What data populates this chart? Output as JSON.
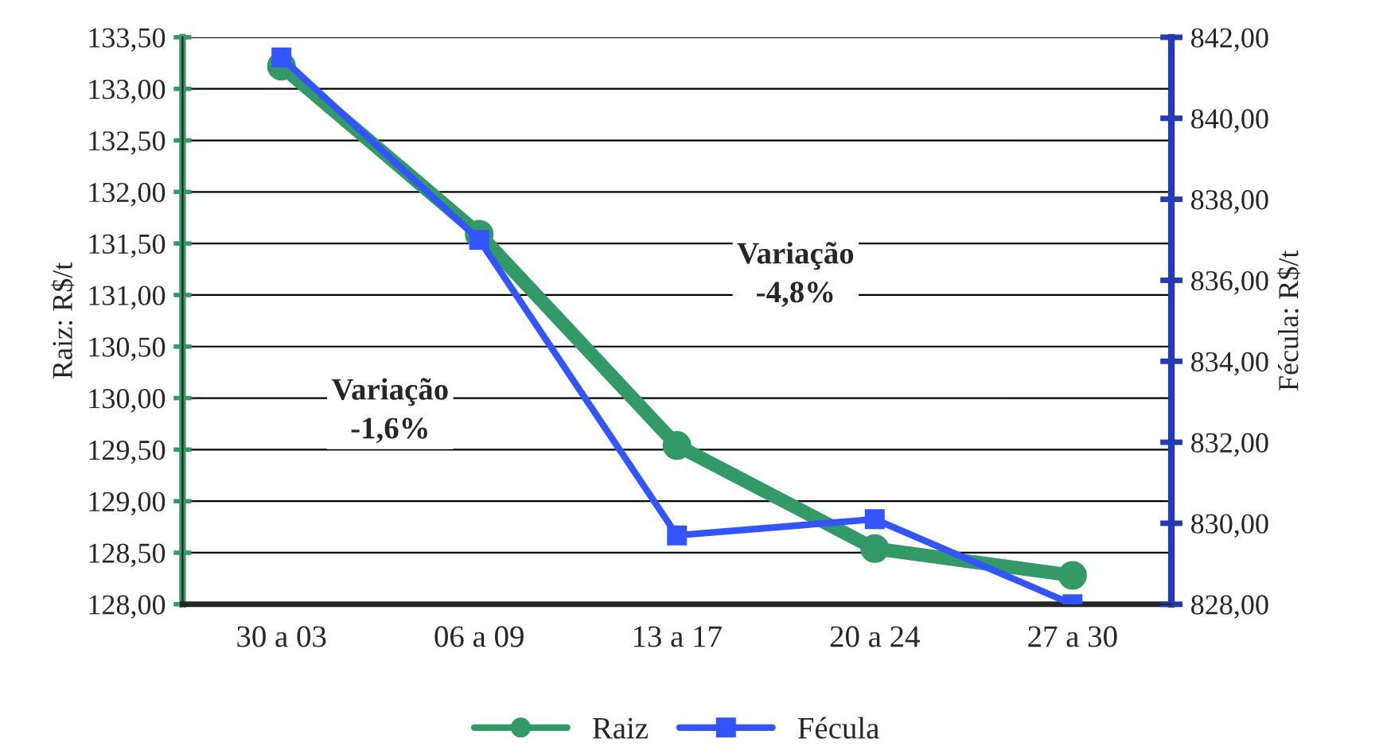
{
  "chart_data": {
    "type": "line",
    "ylabel": "Raiz: R$/t",
    "y2label": "Fécula: R$/t",
    "categories": [
      "30 a 03",
      "06 a 09",
      "13 a 17",
      "20 a 24",
      "27 a 30"
    ],
    "series": [
      {
        "name": "Raiz",
        "color": "#339966",
        "values": [
          133.22,
          131.59,
          129.54,
          128.54,
          128.28
        ],
        "marker": "circle"
      },
      {
        "name": "Fécula",
        "color": "#3355ff",
        "values": [
          841.5,
          837.0,
          829.7,
          830.1,
          828.0
        ],
        "axis": "y2",
        "marker": "square"
      }
    ],
    "ylim": [
      128,
      133.5
    ],
    "yticks": [
      {
        "value": 128,
        "label": "128,00"
      },
      {
        "value": 128.5,
        "label": "128,50"
      },
      {
        "value": 129,
        "label": "129,00"
      },
      {
        "value": 129.5,
        "label": "129,50"
      },
      {
        "value": 130,
        "label": "130,00"
      },
      {
        "value": 130.5,
        "label": "130,50"
      },
      {
        "value": 131,
        "label": "131,00"
      },
      {
        "value": 131.5,
        "label": "131,50"
      },
      {
        "value": 132,
        "label": "132,00"
      },
      {
        "value": 132.5,
        "label": "132,50"
      },
      {
        "value": 133,
        "label": "133,00"
      },
      {
        "value": 133.5,
        "label": "133,50"
      }
    ],
    "y2lim": [
      828,
      842
    ],
    "y2ticks": [
      {
        "value": 828,
        "label": "828,00"
      },
      {
        "value": 830,
        "label": "830,00"
      },
      {
        "value": 832,
        "label": "832,00"
      },
      {
        "value": 834,
        "label": "834,00"
      },
      {
        "value": 836,
        "label": "836,00"
      },
      {
        "value": 838,
        "label": "838,00"
      },
      {
        "value": 840,
        "label": "840,00"
      },
      {
        "value": 842,
        "label": "842,00"
      }
    ],
    "annotations": [
      "Variação\n-1,6%",
      "Variação\n-4,8%"
    ],
    "grid": "y",
    "legend": "bottom",
    "line_style": "solid"
  }
}
